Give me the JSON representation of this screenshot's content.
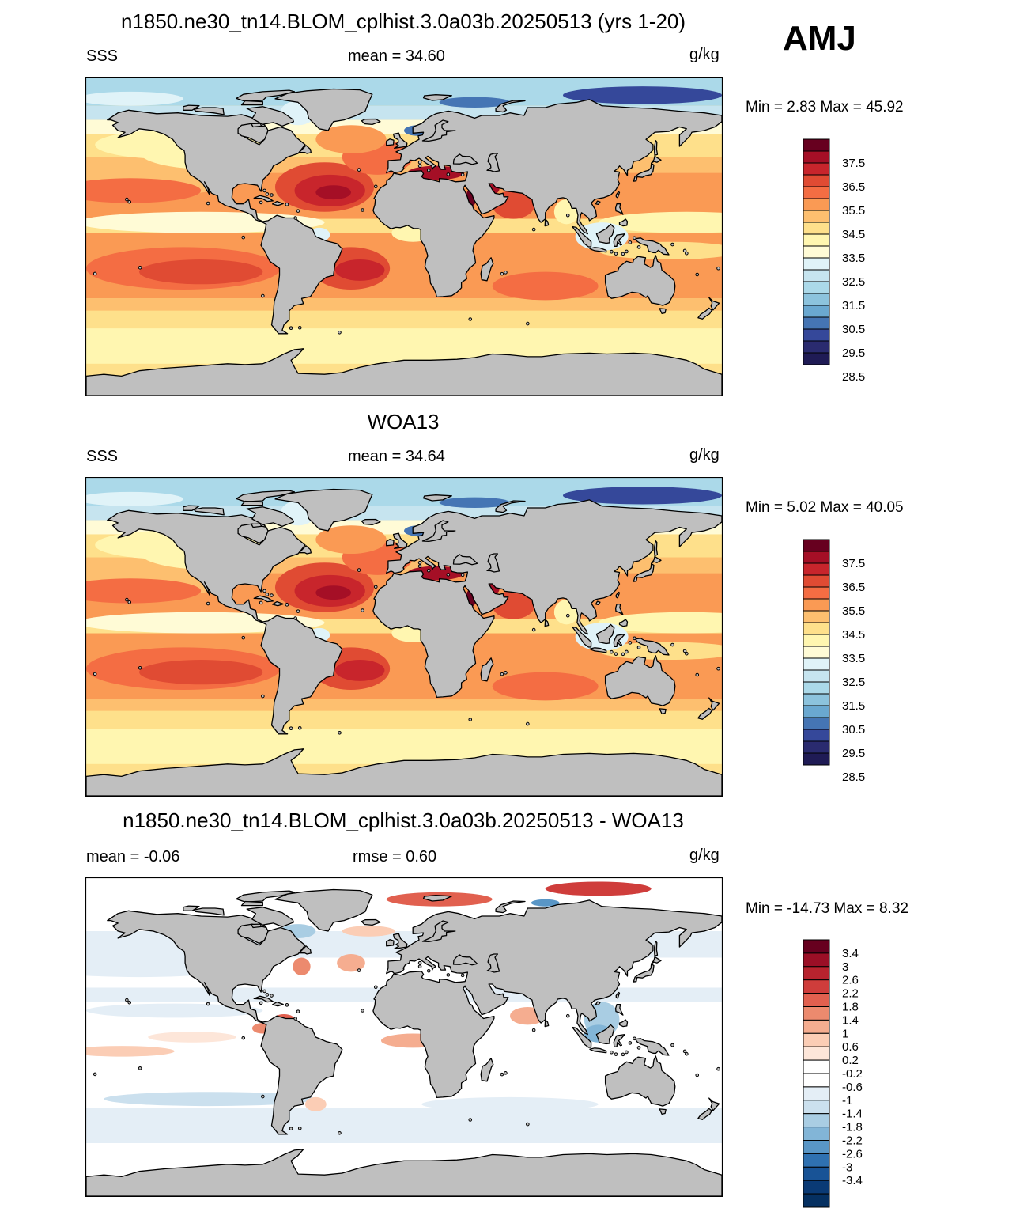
{
  "season": "AMJ",
  "units": "g/kg",
  "panels": [
    {
      "title": "n1850.ne30_tn14.BLOM_cplhist.3.0a03b.20250513 (yrs 1-20)",
      "left_label": "SSS",
      "center_label": "mean =  34.60",
      "units": "g/kg",
      "minmax": "Min =   2.83 Max =  45.92",
      "colorbar_ticks": [
        "37.5",
        "36.5",
        "35.5",
        "34.5",
        "33.5",
        "32.5",
        "31.5",
        "30.5",
        "29.5",
        "28.5"
      ]
    },
    {
      "title": "WOA13",
      "left_label": "SSS",
      "center_label": "mean =  34.64",
      "units": "g/kg",
      "minmax": "Min =   5.02 Max =  40.05",
      "colorbar_ticks": [
        "37.5",
        "36.5",
        "35.5",
        "34.5",
        "33.5",
        "32.5",
        "31.5",
        "30.5",
        "29.5",
        "28.5"
      ]
    },
    {
      "title": "n1850.ne30_tn14.BLOM_cplhist.3.0a03b.20250513 - WOA13",
      "left_label": "mean =  -0.06",
      "center_label": "rmse =   0.60",
      "units": "g/kg",
      "minmax": "Min = -14.73 Max =   8.32",
      "colorbar_ticks": [
        "3.4",
        "3",
        "2.6",
        "2.2",
        "1.8",
        "1.4",
        "1",
        "0.6",
        "0.2",
        "-0.2",
        "-0.6",
        "-1",
        "-1.4",
        "-1.8",
        "-2.2",
        "-2.6",
        "-3",
        "-3.4"
      ]
    }
  ],
  "colors": {
    "land": "#bfbfbf",
    "sss_palette": [
      "#67001f",
      "#a50f26",
      "#c8252c",
      "#e04b33",
      "#f46d43",
      "#fa9a54",
      "#fdbf6f",
      "#fee08b",
      "#fff6b0",
      "#fffbd6",
      "#e0f3f8",
      "#c6e4ef",
      "#abd9e9",
      "#8cc3dd",
      "#6aa8d0",
      "#4575b4",
      "#35489a",
      "#2a2b6f",
      "#1f1b55"
    ],
    "diff_palette": [
      "#67001f",
      "#9b0f26",
      "#b8232e",
      "#cf3d3b",
      "#e1604f",
      "#ec8a6e",
      "#f5ad90",
      "#fbcdb5",
      "#fde6d9",
      "#ffffff",
      "#ffffff",
      "#e4eef6",
      "#cbe0ee",
      "#a9cde3",
      "#82b5d7",
      "#5996c6",
      "#2f71b1",
      "#185396",
      "#0a3a75",
      "#053061"
    ]
  }
}
